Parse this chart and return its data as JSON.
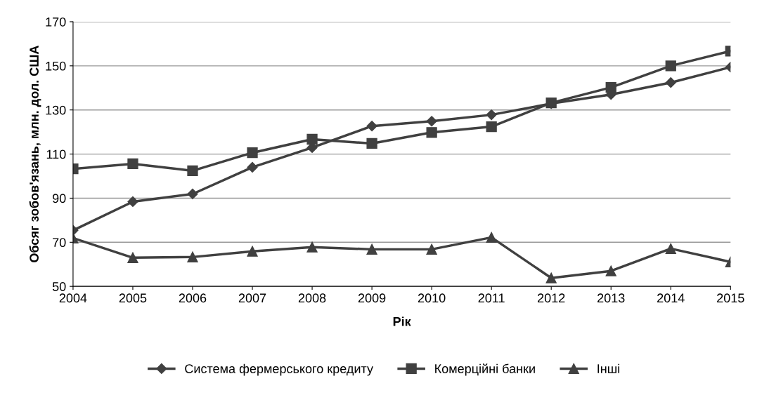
{
  "chart_data": {
    "type": "line",
    "xlabel": "Рік",
    "ylabel": "Обсяг зобов'язань, млн. дол. США",
    "categories": [
      "2004",
      "2005",
      "2006",
      "2007",
      "2008",
      "2009",
      "2010",
      "2011",
      "2012",
      "2013",
      "2014",
      "2015"
    ],
    "series": [
      {
        "name": "Система фермерського кредиту",
        "color": "#404040",
        "marker": "diamond",
        "values": [
          75.4,
          88.4,
          91.9,
          104,
          112.9,
          122.7,
          124.9,
          127.8,
          132.9,
          137,
          142.4,
          149.4
        ]
      },
      {
        "name": "Комерційні банки",
        "color": "#404040",
        "marker": "square",
        "values": [
          103.3,
          105.6,
          102.4,
          110.6,
          116.7,
          114.8,
          119.8,
          122.4,
          133.2,
          140.2,
          150,
          156.7
        ]
      },
      {
        "name": "Інші",
        "color": "#404040",
        "marker": "triangle",
        "values": [
          71.9,
          63,
          63.3,
          65.9,
          67.8,
          66.8,
          66.8,
          72.2,
          53.8,
          57,
          67.1,
          61.1
        ]
      }
    ],
    "ylim": [
      50,
      170
    ],
    "yticks": [
      50,
      70,
      90,
      110,
      130,
      150,
      170
    ],
    "grid": "y",
    "legend": "bottom",
    "line_style": "solid"
  }
}
